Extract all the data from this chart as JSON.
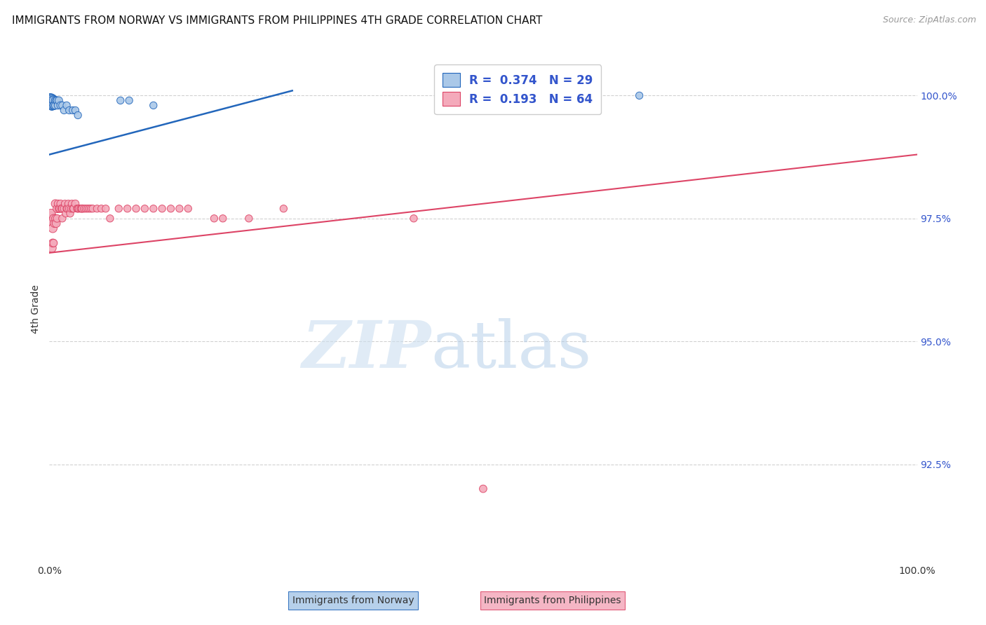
{
  "title": "IMMIGRANTS FROM NORWAY VS IMMIGRANTS FROM PHILIPPINES 4TH GRADE CORRELATION CHART",
  "source": "Source: ZipAtlas.com",
  "ylabel": "4th Grade",
  "ylabel_right_labels": [
    "100.0%",
    "97.5%",
    "95.0%",
    "92.5%"
  ],
  "ylabel_right_values": [
    1.0,
    0.975,
    0.95,
    0.925
  ],
  "xlim": [
    0.0,
    1.0
  ],
  "ylim": [
    0.905,
    1.008
  ],
  "norway_color": "#aac8e8",
  "norway_line_color": "#2266bb",
  "philippines_color": "#f4aabb",
  "philippines_line_color": "#dd4466",
  "norway_trend_x": [
    0.0,
    0.28
  ],
  "norway_trend_y": [
    0.988,
    1.001
  ],
  "philippines_trend_x": [
    0.0,
    1.0
  ],
  "philippines_trend_y": [
    0.968,
    0.988
  ],
  "norway_x": [
    0.001,
    0.002,
    0.002,
    0.003,
    0.003,
    0.003,
    0.004,
    0.004,
    0.005,
    0.005,
    0.006,
    0.007,
    0.007,
    0.008,
    0.009,
    0.01,
    0.011,
    0.013,
    0.015,
    0.017,
    0.02,
    0.023,
    0.027,
    0.03,
    0.033,
    0.082,
    0.092,
    0.12,
    0.68
  ],
  "norway_y": [
    0.999,
    0.999,
    0.999,
    0.999,
    0.998,
    0.998,
    0.999,
    0.998,
    0.999,
    0.998,
    0.998,
    0.999,
    0.998,
    0.999,
    0.999,
    0.998,
    0.999,
    0.998,
    0.998,
    0.997,
    0.998,
    0.997,
    0.997,
    0.997,
    0.996,
    0.999,
    0.999,
    0.998,
    1.0
  ],
  "norway_sizes": [
    200,
    180,
    150,
    120,
    100,
    90,
    90,
    80,
    80,
    70,
    70,
    70,
    60,
    60,
    60,
    60,
    60,
    60,
    55,
    55,
    55,
    55,
    55,
    55,
    55,
    55,
    55,
    55,
    55
  ],
  "philippines_x": [
    0.001,
    0.002,
    0.003,
    0.004,
    0.004,
    0.005,
    0.005,
    0.006,
    0.007,
    0.007,
    0.008,
    0.009,
    0.009,
    0.01,
    0.011,
    0.012,
    0.013,
    0.014,
    0.015,
    0.015,
    0.017,
    0.018,
    0.019,
    0.02,
    0.021,
    0.022,
    0.023,
    0.024,
    0.025,
    0.026,
    0.027,
    0.028,
    0.03,
    0.032,
    0.033,
    0.034,
    0.036,
    0.037,
    0.038,
    0.04,
    0.042,
    0.044,
    0.046,
    0.048,
    0.05,
    0.055,
    0.06,
    0.065,
    0.07,
    0.08,
    0.09,
    0.1,
    0.11,
    0.12,
    0.13,
    0.14,
    0.15,
    0.16,
    0.19,
    0.2,
    0.23,
    0.27,
    0.42,
    0.5
  ],
  "philippines_y": [
    0.975,
    0.976,
    0.969,
    0.973,
    0.97,
    0.975,
    0.97,
    0.974,
    0.978,
    0.975,
    0.974,
    0.977,
    0.975,
    0.978,
    0.977,
    0.977,
    0.978,
    0.977,
    0.977,
    0.975,
    0.977,
    0.978,
    0.976,
    0.977,
    0.977,
    0.978,
    0.977,
    0.976,
    0.977,
    0.978,
    0.977,
    0.977,
    0.978,
    0.977,
    0.977,
    0.977,
    0.977,
    0.977,
    0.977,
    0.977,
    0.977,
    0.977,
    0.977,
    0.977,
    0.977,
    0.977,
    0.977,
    0.977,
    0.975,
    0.977,
    0.977,
    0.977,
    0.977,
    0.977,
    0.977,
    0.977,
    0.977,
    0.977,
    0.975,
    0.975,
    0.975,
    0.977,
    0.975,
    0.92
  ],
  "philippines_sizes": [
    200,
    80,
    80,
    80,
    70,
    70,
    60,
    70,
    70,
    60,
    70,
    70,
    60,
    60,
    60,
    60,
    60,
    60,
    60,
    55,
    60,
    55,
    55,
    55,
    60,
    55,
    60,
    55,
    55,
    55,
    55,
    55,
    60,
    55,
    55,
    55,
    55,
    55,
    60,
    55,
    55,
    55,
    55,
    55,
    55,
    55,
    55,
    55,
    55,
    55,
    55,
    55,
    55,
    55,
    55,
    55,
    55,
    55,
    55,
    55,
    55,
    55,
    55,
    60
  ],
  "watermark_zip": "ZIP",
  "watermark_atlas": "atlas",
  "background_color": "#ffffff",
  "grid_color": "#cccccc",
  "title_fontsize": 11,
  "legend_r_color": "#3355cc",
  "legend_n_color": "#3355cc"
}
